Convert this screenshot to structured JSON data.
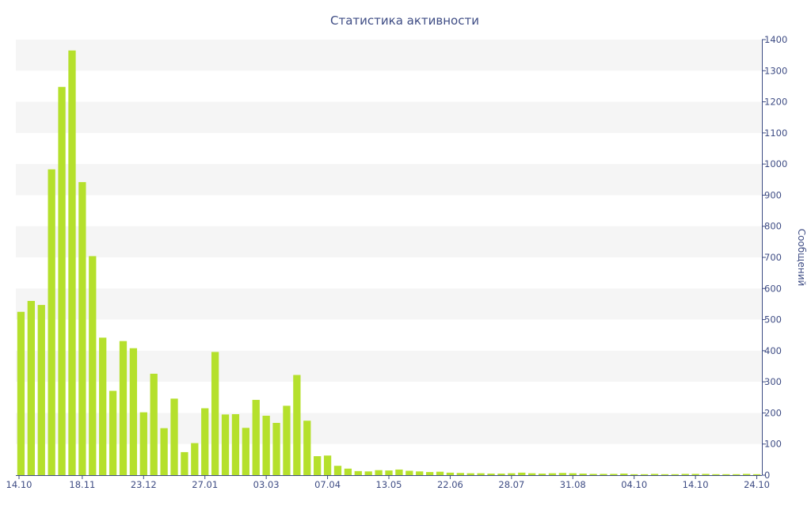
{
  "chart_data": {
    "type": "bar",
    "title": "Статистика активности",
    "xlabel": "",
    "ylabel": "Сообщений",
    "ylim": [
      0,
      1400
    ],
    "y_ticks": [
      0,
      100,
      200,
      300,
      400,
      500,
      600,
      700,
      800,
      900,
      1000,
      1100,
      1200,
      1300,
      1400
    ],
    "y_axis_side": "right",
    "grid": "alternating horizontal bands",
    "x_tick_labels": [
      "14.10",
      "18.11",
      "23.12",
      "27.01",
      "03.03",
      "07.04",
      "13.05",
      "22.06",
      "28.07",
      "31.08",
      "04.10",
      "14.10",
      "24.10"
    ],
    "bar_color": "#b5e02c",
    "band_color": "#f5f5f5",
    "text_color": "#3e4c84",
    "values": [
      525,
      560,
      547,
      983,
      1248,
      1365,
      942,
      704,
      442,
      271,
      431,
      408,
      202,
      326,
      151,
      246,
      74,
      103,
      215,
      396,
      195,
      196,
      152,
      242,
      191,
      168,
      223,
      322,
      175,
      61,
      63,
      30,
      21,
      13,
      12,
      16,
      15,
      18,
      14,
      12,
      10,
      11,
      8,
      7,
      6,
      6,
      5,
      5,
      6,
      8,
      6,
      5,
      6,
      7,
      6,
      5,
      4,
      4,
      4,
      5,
      3,
      3,
      4,
      3,
      3,
      4,
      4,
      4,
      3,
      3,
      3,
      4,
      3
    ],
    "x_tick_bar_index": [
      0,
      6,
      12,
      18,
      24,
      30,
      36,
      42,
      48,
      54,
      60,
      66,
      72
    ]
  }
}
